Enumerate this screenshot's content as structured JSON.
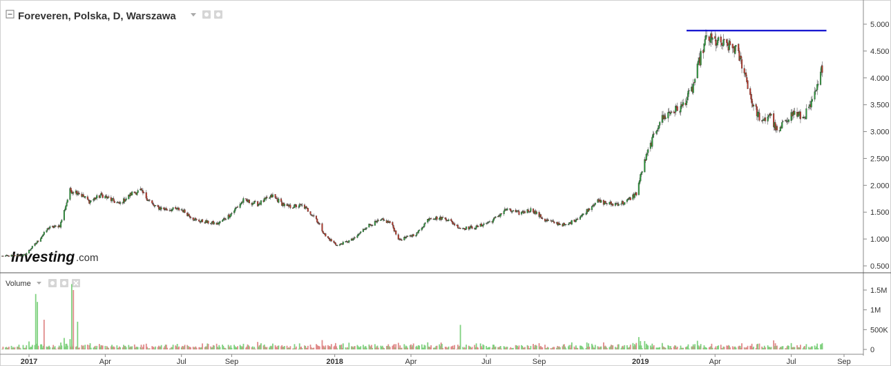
{
  "header": {
    "title": "Foreveren, Polska, D, Warszawa"
  },
  "volume_panel": {
    "title": "Volume",
    "y_labels": [
      "1.5M",
      "1M",
      "500K",
      "0"
    ]
  },
  "logo": {
    "brand": "Investing",
    "suffix": ".com"
  },
  "colors": {
    "up": "#2e9e3e",
    "down": "#c0392b",
    "vol_up": "#7fd17f",
    "vol_down": "#e08a8a",
    "resistance": "#0000cc",
    "axis": "#888888"
  },
  "chart_data": {
    "type": "candlestick",
    "title": "Foreveren, Polska, D, Warszawa",
    "y_ticks": [
      "5.000",
      "4.500",
      "4.000",
      "3.500",
      "3.000",
      "2.500",
      "2.000",
      "1.500",
      "1.000",
      "0.500"
    ],
    "y_range": [
      0.35,
      5.35
    ],
    "x_ticks": [
      {
        "label": "2017",
        "bold": true,
        "date": "2017-01-02"
      },
      {
        "label": "Apr",
        "bold": false,
        "date": "2017-04-03"
      },
      {
        "label": "Jul",
        "bold": false,
        "date": "2017-07-03"
      },
      {
        "label": "Sep",
        "bold": false,
        "date": "2017-09-01"
      },
      {
        "label": "2018",
        "bold": true,
        "date": "2018-01-02"
      },
      {
        "label": "Apr",
        "bold": false,
        "date": "2018-04-03"
      },
      {
        "label": "Jul",
        "bold": false,
        "date": "2018-07-02"
      },
      {
        "label": "Sep",
        "bold": false,
        "date": "2018-09-03"
      },
      {
        "label": "2019",
        "bold": true,
        "date": "2019-01-02"
      },
      {
        "label": "Apr",
        "bold": false,
        "date": "2019-04-01"
      },
      {
        "label": "Jul",
        "bold": false,
        "date": "2019-07-01"
      },
      {
        "label": "Sep",
        "bold": false,
        "date": "2019-09-02"
      }
    ],
    "resistance_line": {
      "value": 4.88,
      "from": "2019-02-26",
      "to": "2019-08-12"
    },
    "price_path": [
      [
        "2016-12-01",
        0.68
      ],
      [
        "2016-12-28",
        0.7
      ],
      [
        "2017-01-12",
        0.95
      ],
      [
        "2017-01-25",
        1.2
      ],
      [
        "2017-02-08",
        1.25
      ],
      [
        "2017-02-20",
        1.9
      ],
      [
        "2017-03-01",
        1.88
      ],
      [
        "2017-03-15",
        1.7
      ],
      [
        "2017-03-30",
        1.82
      ],
      [
        "2017-04-20",
        1.65
      ],
      [
        "2017-05-05",
        1.85
      ],
      [
        "2017-05-15",
        1.9
      ],
      [
        "2017-06-01",
        1.6
      ],
      [
        "2017-06-15",
        1.55
      ],
      [
        "2017-07-03",
        1.55
      ],
      [
        "2017-07-20",
        1.35
      ],
      [
        "2017-08-15",
        1.28
      ],
      [
        "2017-08-30",
        1.45
      ],
      [
        "2017-09-15",
        1.72
      ],
      [
        "2017-10-02",
        1.65
      ],
      [
        "2017-10-20",
        1.8
      ],
      [
        "2017-11-05",
        1.6
      ],
      [
        "2017-11-25",
        1.62
      ],
      [
        "2017-12-10",
        1.4
      ],
      [
        "2017-12-22",
        1.05
      ],
      [
        "2018-01-05",
        0.88
      ],
      [
        "2018-01-25",
        1.0
      ],
      [
        "2018-02-10",
        1.25
      ],
      [
        "2018-02-28",
        1.35
      ],
      [
        "2018-03-10",
        1.3
      ],
      [
        "2018-03-20",
        0.98
      ],
      [
        "2018-04-10",
        1.1
      ],
      [
        "2018-04-25",
        1.4
      ],
      [
        "2018-05-15",
        1.38
      ],
      [
        "2018-06-01",
        1.2
      ],
      [
        "2018-06-20",
        1.22
      ],
      [
        "2018-07-10",
        1.35
      ],
      [
        "2018-07-25",
        1.55
      ],
      [
        "2018-08-10",
        1.48
      ],
      [
        "2018-08-25",
        1.55
      ],
      [
        "2018-09-10",
        1.35
      ],
      [
        "2018-10-05",
        1.25
      ],
      [
        "2018-10-25",
        1.45
      ],
      [
        "2018-11-10",
        1.7
      ],
      [
        "2018-11-30",
        1.65
      ],
      [
        "2018-12-15",
        1.68
      ],
      [
        "2018-12-28",
        1.85
      ],
      [
        "2019-01-05",
        2.35
      ],
      [
        "2019-01-15",
        2.8
      ],
      [
        "2019-01-25",
        3.2
      ],
      [
        "2019-02-05",
        3.35
      ],
      [
        "2019-02-20",
        3.45
      ],
      [
        "2019-03-05",
        3.8
      ],
      [
        "2019-03-15",
        4.4
      ],
      [
        "2019-03-22",
        4.75
      ],
      [
        "2019-04-05",
        4.65
      ],
      [
        "2019-04-25",
        4.55
      ],
      [
        "2019-05-05",
        4.2
      ],
      [
        "2019-05-15",
        3.55
      ],
      [
        "2019-05-28",
        3.15
      ],
      [
        "2019-06-05",
        3.35
      ],
      [
        "2019-06-15",
        2.95
      ],
      [
        "2019-06-25",
        3.25
      ],
      [
        "2019-07-05",
        3.35
      ],
      [
        "2019-07-15",
        3.25
      ],
      [
        "2019-07-25",
        3.5
      ],
      [
        "2019-08-02",
        3.85
      ],
      [
        "2019-08-07",
        4.2
      ]
    ],
    "volume_peaks": [
      {
        "date": "2017-01-10",
        "value": 1400000,
        "up": true
      },
      {
        "date": "2017-01-12",
        "value": 1200000,
        "up": true
      },
      {
        "date": "2017-01-20",
        "value": 750000,
        "up": false
      },
      {
        "date": "2017-02-22",
        "value": 1650000,
        "up": true
      },
      {
        "date": "2017-02-24",
        "value": 1500000,
        "up": false
      },
      {
        "date": "2017-03-01",
        "value": 700000,
        "up": true
      },
      {
        "date": "2018-06-01",
        "value": 620000,
        "up": true
      },
      {
        "date": "2019-08-07",
        "value": 160000,
        "up": true
      }
    ]
  }
}
